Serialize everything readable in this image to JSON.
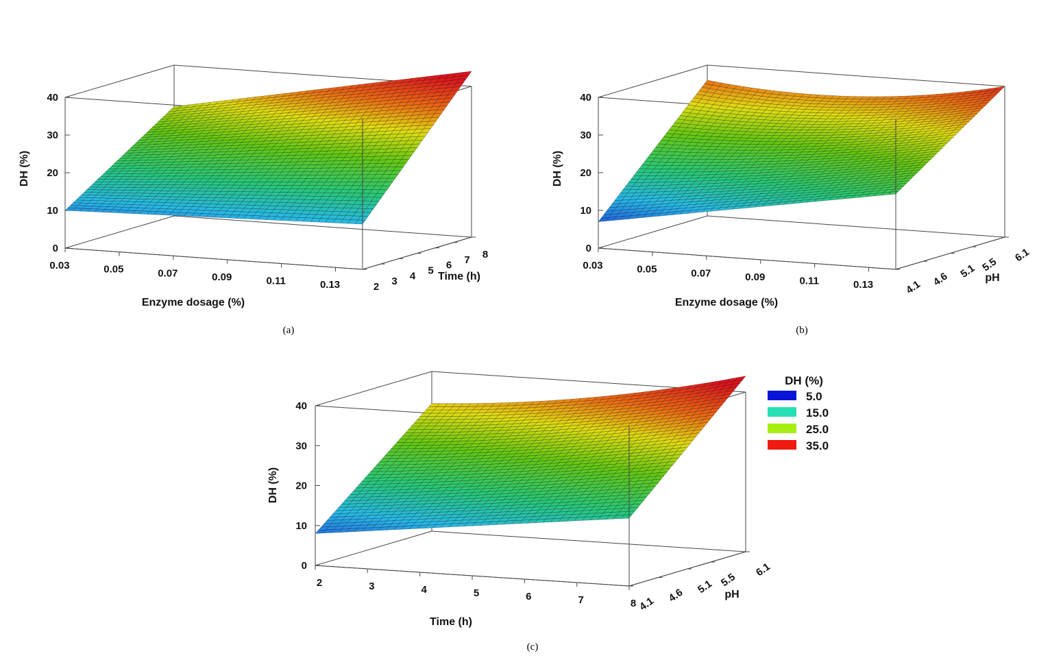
{
  "chart_data": [
    {
      "panel": "a",
      "caption": "(a)",
      "type": "surface3d",
      "x": {
        "label": "Enzyme dosage (%)",
        "ticks": [
          "0.03",
          "0.05",
          "0.07",
          "0.09",
          "0.11",
          "0.13"
        ],
        "range": [
          0.03,
          0.14
        ]
      },
      "y": {
        "label": "Time (h)",
        "ticks": [
          "2",
          "3",
          "4",
          "5",
          "6",
          "7",
          "8"
        ],
        "range": [
          2,
          8
        ]
      },
      "z": {
        "label": "DH (%)",
        "ticks": [
          "0",
          "10",
          "20",
          "30",
          "40"
        ],
        "range": [
          0,
          40
        ]
      },
      "corners": {
        "x_min_y_min": 10,
        "x_max_y_min": 12,
        "x_min_y_max": 29,
        "x_max_y_max": 44
      },
      "curvature": 0
    },
    {
      "panel": "b",
      "caption": "(b)",
      "type": "surface3d",
      "x": {
        "label": "Enzyme dosage (%)",
        "ticks": [
          "0.03",
          "0.05",
          "0.07",
          "0.09",
          "0.11",
          "0.13"
        ],
        "range": [
          0.03,
          0.14
        ]
      },
      "y": {
        "label": "pH",
        "ticks": [
          "4.1",
          "4.6",
          "5.1",
          "5.5",
          "6.1"
        ],
        "range": [
          4.1,
          6.1
        ]
      },
      "z": {
        "label": "DH (%)",
        "ticks": [
          "0",
          "10",
          "20",
          "30",
          "40"
        ],
        "range": [
          0,
          40
        ]
      },
      "corners": {
        "x_min_y_min": 7,
        "x_max_y_min": 20,
        "x_min_y_max": 36,
        "x_max_y_max": 40
      },
      "curvature": -14
    },
    {
      "panel": "c",
      "caption": "(c)",
      "type": "surface3d",
      "x": {
        "label": "Time (h)",
        "ticks": [
          "2",
          "3",
          "4",
          "5",
          "6",
          "7",
          "8"
        ],
        "range": [
          2,
          8
        ]
      },
      "y": {
        "label": "pH",
        "ticks": [
          "4.1",
          "4.6",
          "5.1",
          "5.5",
          "6.1"
        ],
        "range": [
          4.1,
          6.1
        ]
      },
      "z": {
        "label": "DH (%)",
        "ticks": [
          "0",
          "10",
          "20",
          "30",
          "40"
        ],
        "range": [
          0,
          40
        ]
      },
      "corners": {
        "x_min_y_min": 8,
        "x_max_y_min": 17,
        "x_min_y_max": 32,
        "x_max_y_max": 44
      },
      "curvature": -8
    }
  ],
  "legend": {
    "title": "DH (%)",
    "items": [
      {
        "label": "5.0",
        "color": "#0a14d8"
      },
      {
        "label": "15.0",
        "color": "#26e0b4"
      },
      {
        "label": "25.0",
        "color": "#a6ee10"
      },
      {
        "label": "35.0",
        "color": "#f01a10"
      }
    ]
  }
}
